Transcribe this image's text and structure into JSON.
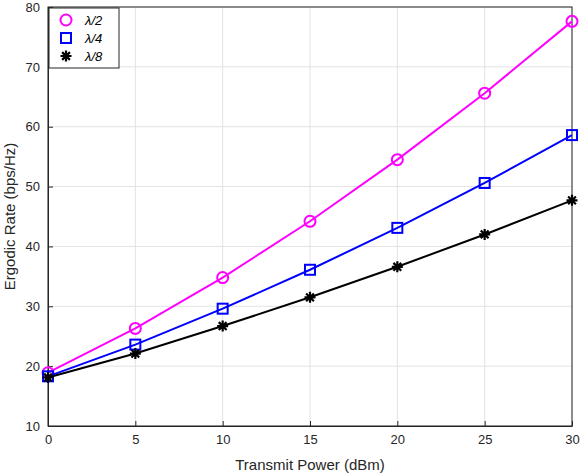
{
  "chart_data": {
    "type": "line",
    "x_label": "Transmit Power (dBm)",
    "y_label": "Ergodic Rate (bps/Hz)",
    "x": [
      0,
      5,
      10,
      15,
      20,
      25,
      30
    ],
    "series": [
      {
        "name": "λ/2",
        "color": "#ff00ff",
        "marker": "circle",
        "line_style": "solid",
        "values": [
          18.9,
          26.3,
          34.8,
          44.2,
          54.5,
          65.6,
          77.6
        ]
      },
      {
        "name": "λ/4",
        "color": "#0000ff",
        "marker": "square",
        "line_style": "solid",
        "values": [
          18.3,
          23.6,
          29.6,
          36.1,
          43.1,
          50.6,
          58.6
        ]
      },
      {
        "name": "λ/8",
        "color": "#000000",
        "marker": "asterisk",
        "line_style": "solid",
        "values": [
          18.1,
          22.1,
          26.7,
          31.5,
          36.6,
          42.0,
          47.7
        ]
      }
    ],
    "xlim": [
      0,
      30
    ],
    "xticks": [
      0,
      5,
      10,
      15,
      20,
      25,
      30
    ],
    "ylim": [
      10,
      80
    ],
    "yticks": [
      10,
      20,
      30,
      40,
      50,
      60,
      70,
      80
    ],
    "grid": true,
    "legend": "top-left"
  }
}
